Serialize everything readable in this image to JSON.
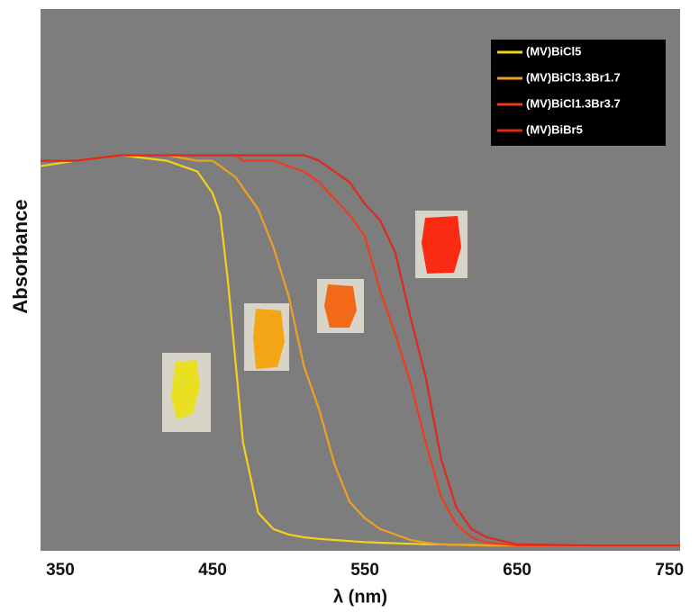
{
  "chart_data": {
    "type": "line",
    "x_label": "λ (nm)",
    "y_label": "Absorbance",
    "xlim": [
      337,
      757
    ],
    "ylim": [
      0,
      1
    ],
    "xticks": [
      350,
      450,
      550,
      650,
      750
    ],
    "legend": "upper right",
    "x": [
      337,
      360,
      390,
      420,
      440,
      450,
      455,
      460,
      465,
      470,
      480,
      490,
      500,
      510,
      520,
      530,
      540,
      550,
      560,
      570,
      580,
      590,
      600,
      610,
      620,
      630,
      650,
      700,
      757
    ],
    "series": [
      {
        "name": "(MV)BiCl5",
        "color": "#f2d21b",
        "values": [
          0.71,
          0.72,
          0.73,
          0.72,
          0.7,
          0.66,
          0.62,
          0.5,
          0.35,
          0.2,
          0.07,
          0.04,
          0.03,
          0.025,
          0.022,
          0.02,
          0.018,
          0.016,
          0.015,
          0.014,
          0.013,
          0.012,
          0.012,
          0.011,
          0.011,
          0.01,
          0.01,
          0.01,
          0.01
        ]
      },
      {
        "name": "(MV)BiCl3.3Br1.7",
        "color": "#f0a020",
        "values": [
          0.72,
          0.72,
          0.73,
          0.73,
          0.72,
          0.72,
          0.71,
          0.7,
          0.69,
          0.67,
          0.63,
          0.56,
          0.47,
          0.34,
          0.26,
          0.16,
          0.09,
          0.06,
          0.04,
          0.03,
          0.02,
          0.015,
          0.012,
          0.011,
          0.01,
          0.01,
          0.01,
          0.01,
          0.01
        ]
      },
      {
        "name": "(MV)BiCl1.3Br3.7",
        "color": "#f03a1c",
        "values": [
          0.72,
          0.72,
          0.73,
          0.73,
          0.73,
          0.73,
          0.73,
          0.73,
          0.73,
          0.72,
          0.72,
          0.72,
          0.71,
          0.7,
          0.68,
          0.65,
          0.62,
          0.58,
          0.48,
          0.4,
          0.31,
          0.2,
          0.1,
          0.05,
          0.025,
          0.015,
          0.01,
          0.01,
          0.01
        ]
      },
      {
        "name": "(MV)BiBr5",
        "color": "#e0281c",
        "values": [
          0.72,
          0.72,
          0.73,
          0.73,
          0.73,
          0.73,
          0.73,
          0.73,
          0.73,
          0.73,
          0.73,
          0.73,
          0.73,
          0.73,
          0.72,
          0.7,
          0.68,
          0.64,
          0.61,
          0.55,
          0.43,
          0.32,
          0.17,
          0.08,
          0.04,
          0.025,
          0.012,
          0.01,
          0.01
        ]
      }
    ]
  }
}
